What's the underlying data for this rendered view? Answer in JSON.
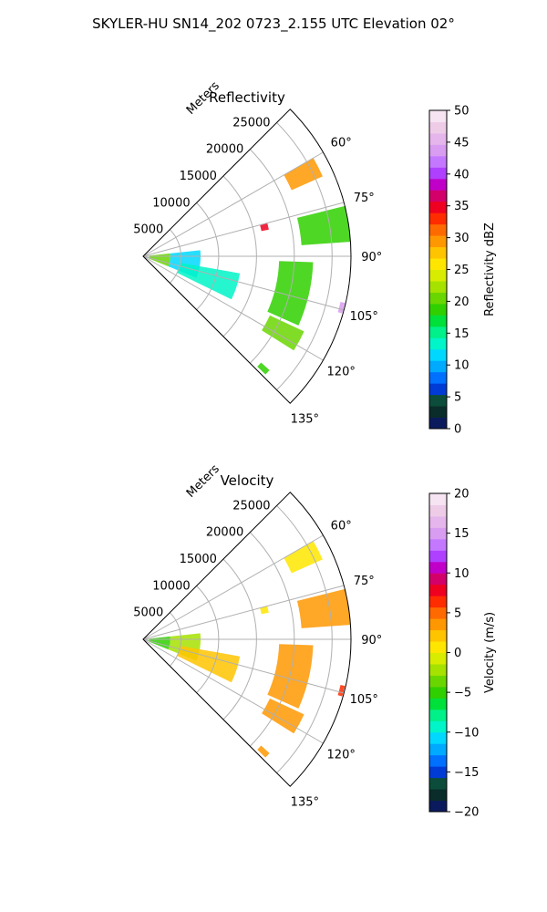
{
  "figure": {
    "title": "SKYLER-HU  SN14_202  0723_2.155 UTC Elevation 02°"
  },
  "chart_data": [
    {
      "type": "polar_sector",
      "title": "Reflectivity",
      "radial_axis_label": "Meters",
      "radial_ticks": [
        5000,
        10000,
        15000,
        20000,
        25000
      ],
      "radial_tick_labels": [
        "5000",
        "10000",
        "15000",
        "20000",
        "25000"
      ],
      "r_max": 27500,
      "angle_range_deg": [
        45,
        135
      ],
      "angle_ticks": [
        60,
        75,
        90,
        105,
        120,
        135
      ],
      "angle_tick_labels": [
        "60°",
        "75°",
        "90°",
        "105°",
        "120°",
        "135°"
      ],
      "grid": true,
      "colorbar": {
        "label": "Reflectivity dBZ",
        "min": 0,
        "max": 50,
        "ticks": [
          0,
          5,
          10,
          15,
          20,
          25,
          30,
          35,
          40,
          45,
          50
        ],
        "tick_labels": [
          "0",
          "5",
          "10",
          "15",
          "20",
          "25",
          "30",
          "35",
          "40",
          "45",
          "50"
        ],
        "colors": [
          "#0b1a5c",
          "#0a2c2a",
          "#0b4d3a",
          "#003bd6",
          "#0070ff",
          "#00aaff",
          "#00d8ff",
          "#00f5c8",
          "#00f08a",
          "#00e03a",
          "#30d000",
          "#6ad600",
          "#a6e200",
          "#d8ec00",
          "#ffe600",
          "#ffc400",
          "#ff9800",
          "#ff6a00",
          "#ff2c00",
          "#f00020",
          "#d4006a",
          "#c000c8",
          "#b040ff",
          "#c478ff",
          "#d89cf0",
          "#e4b6ec",
          "#eecce8",
          "#f6e4f2"
        ]
      },
      "echo_regions": [
        {
          "az": [
            84,
            112
          ],
          "r": [
            800,
            3600
          ],
          "value": 21
        },
        {
          "az": [
            84,
            112
          ],
          "r": [
            3600,
            7600
          ],
          "value": 12
        },
        {
          "az": [
            100,
            116
          ],
          "r": [
            5000,
            13000
          ],
          "value": 14
        },
        {
          "az": [
            60,
            66
          ],
          "r": [
            21500,
            26000
          ],
          "value": 30
        },
        {
          "az": [
            76,
            86
          ],
          "r": [
            21000,
            27500
          ],
          "value": 19
        },
        {
          "az": [
            92,
            114
          ],
          "r": [
            18000,
            22500
          ],
          "value": 19
        },
        {
          "az": [
            115,
            122
          ],
          "r": [
            18500,
            23500
          ],
          "value": 21
        },
        {
          "az": [
            103,
            106
          ],
          "r": [
            26800,
            27400
          ],
          "value": 44
        },
        {
          "az": [
            132,
            134
          ],
          "r": [
            21000,
            22500
          ],
          "value": 18
        },
        {
          "az": [
            75,
            78
          ],
          "r": [
            16000,
            17000
          ],
          "value": 34
        }
      ]
    },
    {
      "type": "polar_sector",
      "title": "Velocity",
      "radial_axis_label": "Meters",
      "radial_ticks": [
        5000,
        10000,
        15000,
        20000,
        25000
      ],
      "radial_tick_labels": [
        "5000",
        "10000",
        "15000",
        "20000",
        "25000"
      ],
      "r_max": 27500,
      "angle_range_deg": [
        45,
        135
      ],
      "angle_ticks": [
        60,
        75,
        90,
        105,
        120,
        135
      ],
      "angle_tick_labels": [
        "60°",
        "75°",
        "90°",
        "105°",
        "120°",
        "135°"
      ],
      "grid": true,
      "colorbar": {
        "label": "Velocity (m/s)",
        "min": -20,
        "max": 20,
        "ticks": [
          -20,
          -15,
          -10,
          -5,
          0,
          5,
          10,
          15,
          20
        ],
        "tick_labels": [
          "−20",
          "−15",
          "−10",
          "−5",
          "0",
          "5",
          "10",
          "15",
          "20"
        ],
        "colors": [
          "#0b1a5c",
          "#0a2c2a",
          "#0b4d3a",
          "#003bd6",
          "#0070ff",
          "#00aaff",
          "#00d8ff",
          "#00f5c8",
          "#00f08a",
          "#00e03a",
          "#30d000",
          "#6ad600",
          "#a6e200",
          "#d8ec00",
          "#ffe600",
          "#ffc400",
          "#ff9800",
          "#ff6a00",
          "#ff2c00",
          "#f00020",
          "#d4006a",
          "#c000c8",
          "#b040ff",
          "#c478ff",
          "#d89cf0",
          "#e4b6ec",
          "#eecce8",
          "#f6e4f2"
        ]
      },
      "echo_regions": [
        {
          "az": [
            84,
            112
          ],
          "r": [
            800,
            3600
          ],
          "value": -5
        },
        {
          "az": [
            84,
            112
          ],
          "r": [
            3600,
            7600
          ],
          "value": -2
        },
        {
          "az": [
            100,
            116
          ],
          "r": [
            5000,
            13000
          ],
          "value": 2
        },
        {
          "az": [
            60,
            66
          ],
          "r": [
            21500,
            26000
          ],
          "value": 0
        },
        {
          "az": [
            76,
            86
          ],
          "r": [
            21000,
            27500
          ],
          "value": 3
        },
        {
          "az": [
            92,
            114
          ],
          "r": [
            18000,
            22500
          ],
          "value": 4
        },
        {
          "az": [
            115,
            122
          ],
          "r": [
            18500,
            23500
          ],
          "value": 4
        },
        {
          "az": [
            103,
            106
          ],
          "r": [
            26800,
            27400
          ],
          "value": 6
        },
        {
          "az": [
            132,
            134
          ],
          "r": [
            21000,
            22500
          ],
          "value": 3
        },
        {
          "az": [
            75,
            78
          ],
          "r": [
            16000,
            17000
          ],
          "value": 1
        }
      ]
    }
  ]
}
